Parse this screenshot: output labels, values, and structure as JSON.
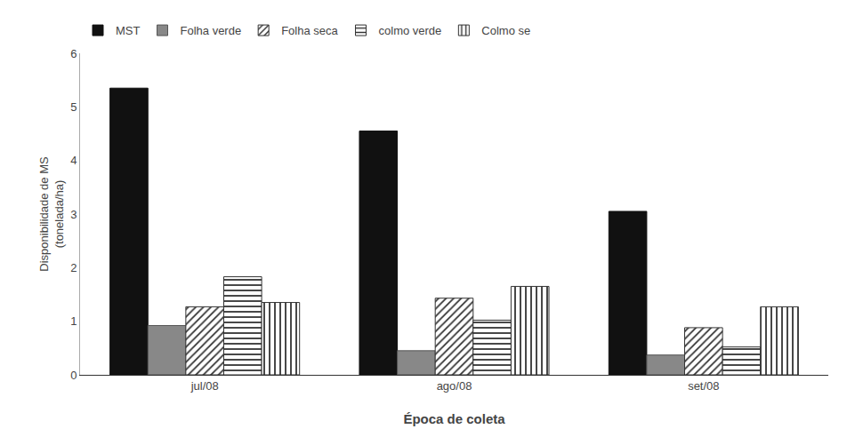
{
  "chart_data": {
    "type": "bar",
    "categories": [
      "jul/08",
      "ago/08",
      "set/08"
    ],
    "series": [
      {
        "name": "MST",
        "color": "#111111",
        "values": [
          5.35,
          4.55,
          3.05
        ]
      },
      {
        "name": "Folha verde",
        "color": "#888888",
        "values": [
          0.92,
          0.45,
          0.37
        ]
      },
      {
        "name": "Folha seca",
        "color": "#ffffff",
        "values": [
          1.27,
          1.43,
          0.88
        ]
      },
      {
        "name": "colmo verde",
        "color": "#ffffff",
        "values": [
          1.83,
          1.02,
          0.52
        ]
      },
      {
        "name": "Colmo se",
        "color": "#ffffff",
        "values": [
          1.35,
          1.65,
          1.27
        ]
      }
    ],
    "xlabel": "Época de coleta",
    "ylabel": "Disponibilidade de MS\n(tonelada/ha)",
    "ylim": [
      0,
      6
    ],
    "yticks": [
      0,
      1,
      2,
      3,
      4,
      5,
      6
    ],
    "grid": false,
    "legend": "upper left"
  }
}
